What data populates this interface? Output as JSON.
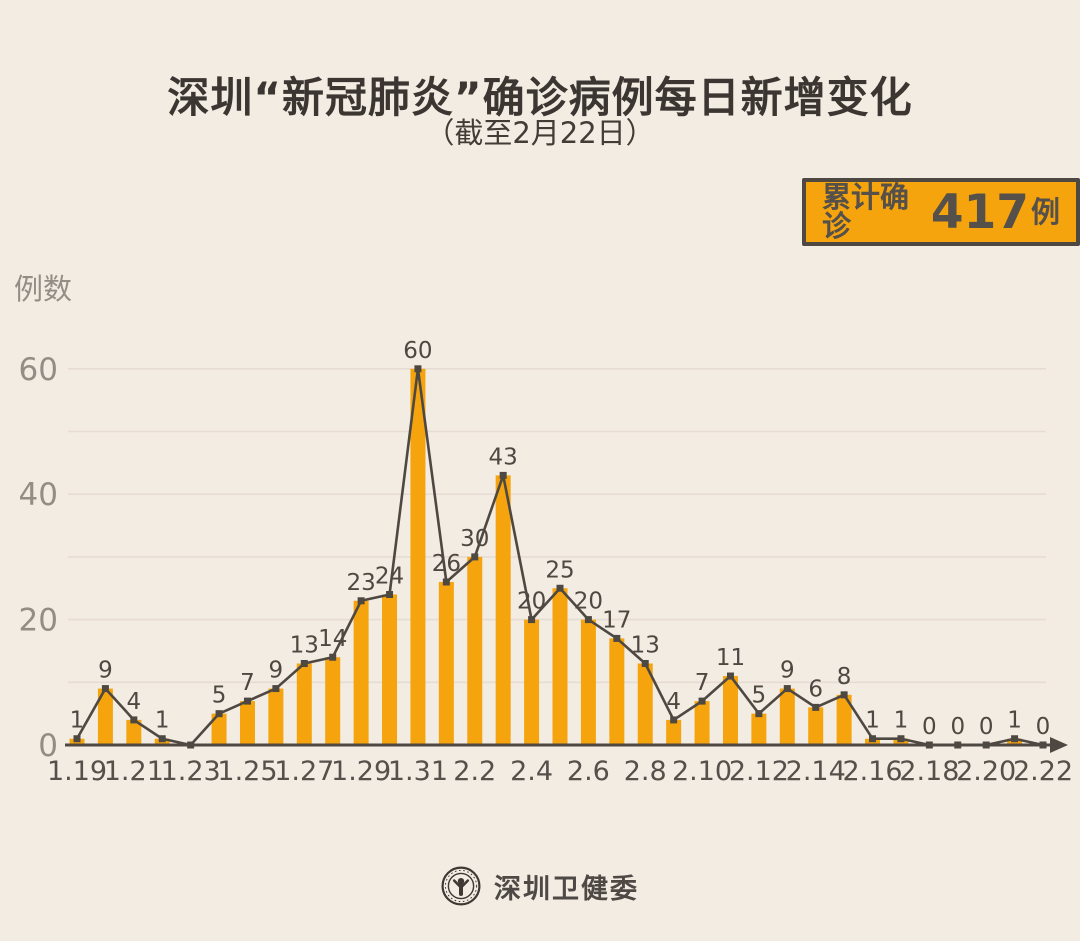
{
  "header": {
    "title": "深圳“新冠肺炎”确诊病例每日新增变化",
    "subtitle": "（截至2月22日）"
  },
  "badge": {
    "prefix": "累计确诊",
    "value": "417",
    "suffix": "例"
  },
  "footer": {
    "brand": "深圳卫健委",
    "logo_icon": "person-emblem-icon"
  },
  "colors": {
    "background": "#F2ECE3",
    "bar": "#F6A40D",
    "line": "#4E4842",
    "grid": "#E7DCD3",
    "axis_tick_text": "#938D85",
    "x_tick_text": "#55504A",
    "data_label_text": "#4E4842",
    "badge_bg": "#F6A40D",
    "badge_border": "#4E4842",
    "title_text": "#3B3631"
  },
  "chart_data": {
    "type": "bar+line",
    "title": "深圳“新冠肺炎”确诊病例每日新增变化",
    "subtitle": "（截至2月22日）",
    "xlabel": "",
    "ylabel": "例数",
    "annotation": "累计确诊417例",
    "cumulative_total": 417,
    "categories": [
      "1.19",
      "1.20",
      "1.21",
      "1.22",
      "1.23",
      "1.24",
      "1.25",
      "1.26",
      "1.27",
      "1.28",
      "1.29",
      "1.30",
      "1.31",
      "2.1",
      "2.2",
      "2.3",
      "2.4",
      "2.5",
      "2.6",
      "2.7",
      "2.8",
      "2.9",
      "2.10",
      "2.11",
      "2.12",
      "2.13",
      "2.14",
      "2.15",
      "2.16",
      "2.17",
      "2.18",
      "2.19",
      "2.20",
      "2.21",
      "2.22"
    ],
    "values": [
      1,
      9,
      4,
      1,
      0,
      5,
      7,
      9,
      13,
      14,
      23,
      24,
      60,
      26,
      30,
      43,
      20,
      25,
      20,
      17,
      13,
      4,
      7,
      11,
      5,
      9,
      6,
      8,
      1,
      1,
      0,
      0,
      0,
      1,
      0
    ],
    "x_tick_labels": [
      "1.19",
      "1.21",
      "1.23",
      "1.25",
      "1.27",
      "1.29",
      "1.31",
      "2.2",
      "2.4",
      "2.6",
      "2.8",
      "2.10",
      "2.12",
      "2.14",
      "2.16",
      "2.18",
      "2.20",
      "2.22"
    ],
    "x_tick_every": 2,
    "yticks": [
      0,
      20,
      40,
      60
    ],
    "ylim": [
      0,
      60
    ],
    "grid_step": 10,
    "grid_on": true,
    "hide_label_indices": [
      4
    ],
    "legend_position": "none"
  }
}
